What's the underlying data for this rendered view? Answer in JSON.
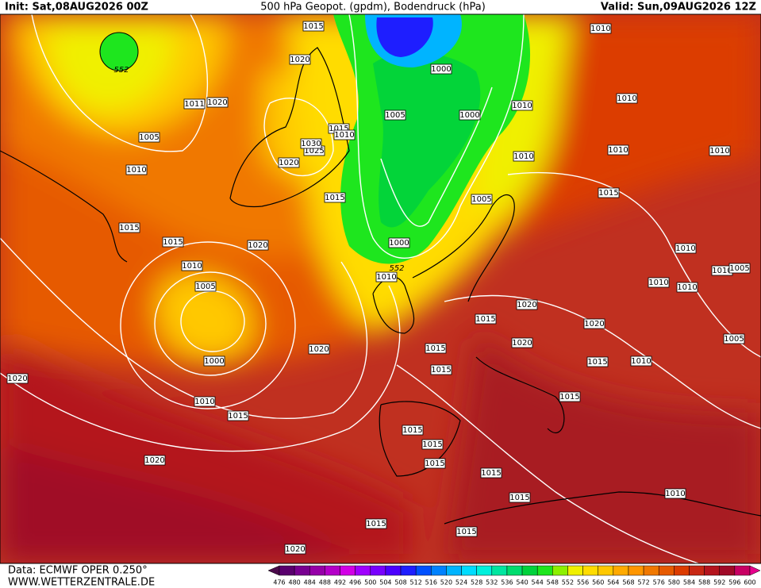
{
  "header": {
    "init": "Init: Sat,08AUG2026 00Z",
    "title": "500 hPa Geopot. (gpdm), Bodendruck (hPa)",
    "valid": "Valid: Sun,09AUG2026 12Z"
  },
  "footer": {
    "source": "Data: ECMWF OPER 0.250°",
    "website": "WWW.WETTERZENTRALE.DE"
  },
  "colorbar": {
    "ticks": [
      476,
      480,
      484,
      488,
      492,
      496,
      500,
      504,
      508,
      512,
      516,
      520,
      524,
      528,
      532,
      536,
      540,
      544,
      548,
      552,
      556,
      560,
      564,
      568,
      572,
      576,
      580,
      584,
      588,
      592,
      596,
      600
    ],
    "colors": [
      "#4b0a4b",
      "#5a006e",
      "#780090",
      "#9600a8",
      "#b400c8",
      "#d200e6",
      "#a000ff",
      "#7800ff",
      "#4b00ff",
      "#1e1eff",
      "#0050ff",
      "#0082ff",
      "#00b4ff",
      "#00dcff",
      "#00f0dc",
      "#00e6a0",
      "#00dc6e",
      "#00d23c",
      "#1ee61e",
      "#8cf000",
      "#f0f000",
      "#ffdc00",
      "#ffc800",
      "#ffaa00",
      "#ff9600",
      "#f07800",
      "#e65a00",
      "#dc3c00",
      "#c82814",
      "#b4141e",
      "#a00a28",
      "#c80064",
      "#e6008c"
    ]
  },
  "isobar_labels": [
    "1015",
    "1020",
    "552",
    "1011",
    "1020",
    "1005",
    "1010",
    "1015",
    "1015",
    "1020",
    "1010",
    "1005",
    "1000",
    "1010",
    "1015",
    "1020",
    "1020",
    "1020",
    "1020",
    "1015",
    "1015",
    "1015",
    "1015",
    "1015",
    "1015",
    "1015",
    "1015",
    "1015",
    "1015",
    "1010",
    "552",
    "1000",
    "1015",
    "1020",
    "1025",
    "1030",
    "1015",
    "1010",
    "1005",
    "1000",
    "1000",
    "1010",
    "1010",
    "1005",
    "1010",
    "1010",
    "1010",
    "1010",
    "1015",
    "1010",
    "1010",
    "1010",
    "1010",
    "1005",
    "1020",
    "1020",
    "1020",
    "1015",
    "1010",
    "1005",
    "1015",
    "1010"
  ]
}
